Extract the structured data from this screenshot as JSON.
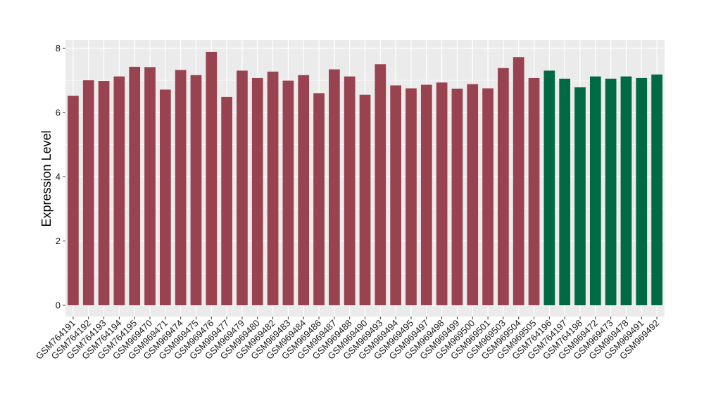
{
  "chart_data": {
    "type": "bar",
    "title": "",
    "xlabel": "",
    "ylabel": "Expression Level",
    "ylim": [
      -0.35,
      8.25
    ],
    "yticks": [
      0,
      2,
      4,
      6,
      8
    ],
    "grid": true,
    "colors": {
      "group1": "#9a4350",
      "group2": "#006a45",
      "panel": "#ebebeb",
      "grid": "#ffffff"
    },
    "categories": [
      "GSM764191",
      "GSM764192",
      "GSM764193",
      "GSM764194",
      "GSM764195",
      "GSM969470",
      "GSM969471",
      "GSM969474",
      "GSM969475",
      "GSM969476",
      "GSM969477",
      "GSM969479",
      "GSM969480",
      "GSM969482",
      "GSM969483",
      "GSM969484",
      "GSM969486",
      "GSM969487",
      "GSM969488",
      "GSM969490",
      "GSM969493",
      "GSM969494",
      "GSM969495",
      "GSM969497",
      "GSM969498",
      "GSM969499",
      "GSM969500",
      "GSM969501",
      "GSM969503",
      "GSM969504",
      "GSM969505",
      "GSM764196",
      "GSM764197",
      "GSM764198",
      "GSM969472",
      "GSM969473",
      "GSM969478",
      "GSM969491",
      "GSM969492"
    ],
    "values": [
      6.52,
      7.0,
      6.98,
      7.12,
      7.42,
      7.41,
      6.71,
      7.32,
      7.16,
      7.88,
      6.48,
      7.3,
      7.07,
      7.27,
      6.99,
      7.16,
      6.6,
      7.34,
      7.12,
      6.55,
      7.5,
      6.84,
      6.75,
      6.86,
      6.93,
      6.74,
      6.88,
      6.75,
      7.38,
      7.72,
      7.07,
      7.3,
      7.05,
      6.78,
      7.12,
      7.05,
      7.12,
      7.07,
      7.18
    ],
    "groups": [
      1,
      1,
      1,
      1,
      1,
      1,
      1,
      1,
      1,
      1,
      1,
      1,
      1,
      1,
      1,
      1,
      1,
      1,
      1,
      1,
      1,
      1,
      1,
      1,
      1,
      1,
      1,
      1,
      1,
      1,
      1,
      2,
      2,
      2,
      2,
      2,
      2,
      2,
      2
    ]
  }
}
